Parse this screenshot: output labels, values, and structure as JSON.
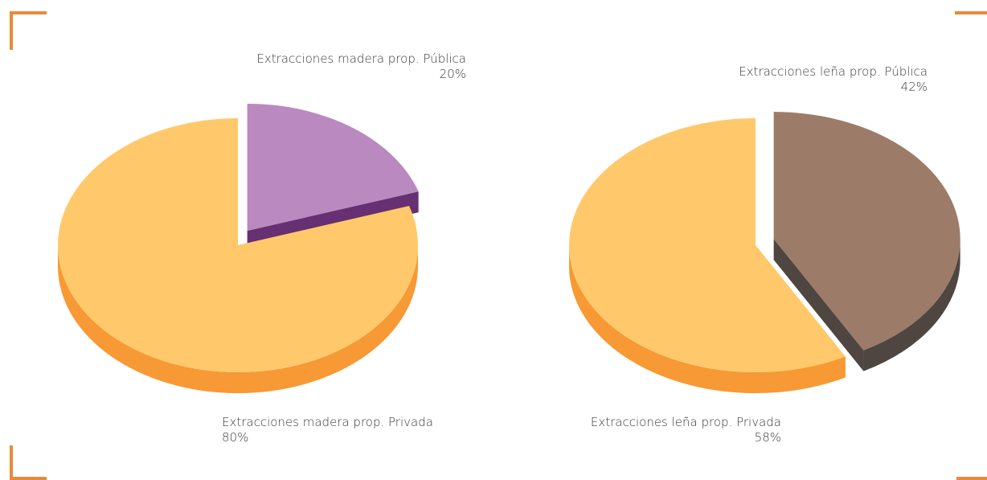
{
  "chart_data": [
    {
      "type": "pie",
      "title": "",
      "slices": [
        {
          "label": "Extracciones madera prop. Pública",
          "value": 20,
          "value_label": "20%",
          "color": "#ba89bf",
          "side_color": "#663073",
          "exploded": true
        },
        {
          "label": "Extracciones madera prop. Privada",
          "value": 80,
          "value_label": "80%",
          "color": "#ffc96b",
          "side_color": "#f79934",
          "exploded": false
        }
      ]
    },
    {
      "type": "pie",
      "title": "",
      "slices": [
        {
          "label": "Extracciones leña prop. Pública",
          "value": 42,
          "value_label": "42%",
          "color": "#9c7b68",
          "side_color": "#4f4541",
          "exploded": true
        },
        {
          "label": "Extracciones leña prop. Privada",
          "value": 58,
          "value_label": "58%",
          "color": "#ffc96b",
          "side_color": "#f79934",
          "exploded": false
        }
      ]
    }
  ],
  "decor": {
    "corner_color": "#e98a3a"
  }
}
